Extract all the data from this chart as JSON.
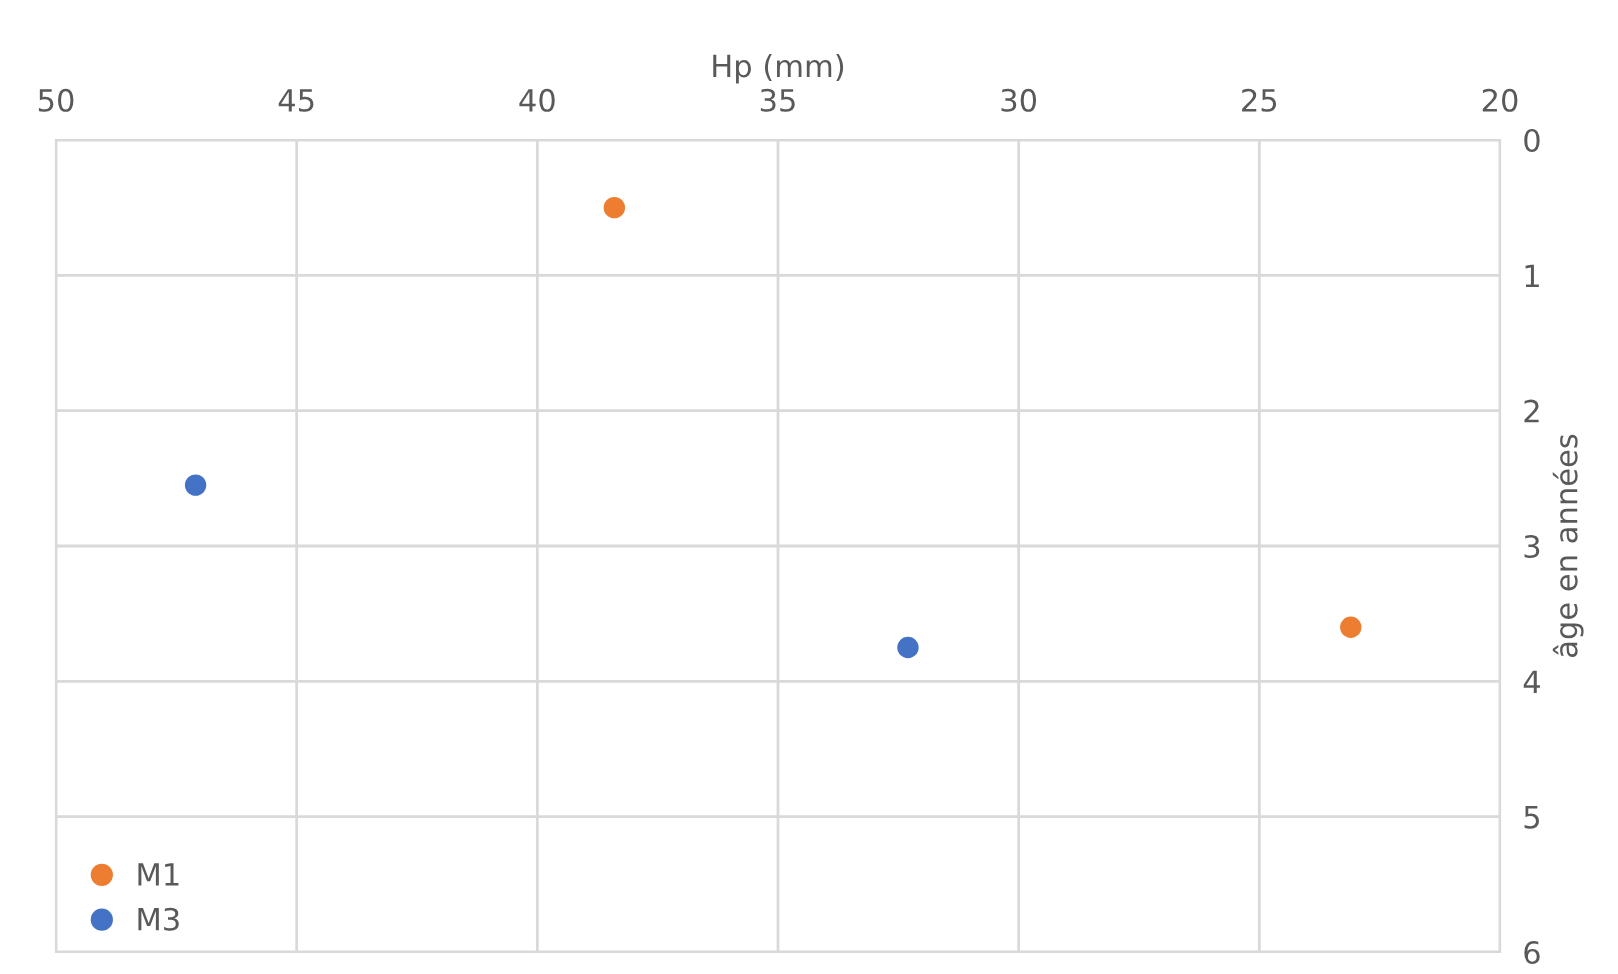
{
  "chart_data": {
    "type": "scatter",
    "xlabel": "Hp (mm)",
    "ylabel": "âge en années",
    "xlim": [
      50,
      20
    ],
    "xticks": [
      50,
      45,
      40,
      35,
      30,
      25,
      20
    ],
    "ylim": [
      6,
      0
    ],
    "yticks": [
      0,
      1,
      2,
      3,
      4,
      5,
      6
    ],
    "grid": true,
    "legend": "bottom left",
    "marker": "circle",
    "series": [
      {
        "name": "M1",
        "color": "#ed7d31",
        "x": [
          38.4,
          23.1
        ],
        "values": [
          0.5,
          3.6
        ]
      },
      {
        "name": "M3",
        "color": "#4472c4",
        "x": [
          47.1,
          32.3
        ],
        "values": [
          2.55,
          3.75
        ]
      }
    ]
  }
}
